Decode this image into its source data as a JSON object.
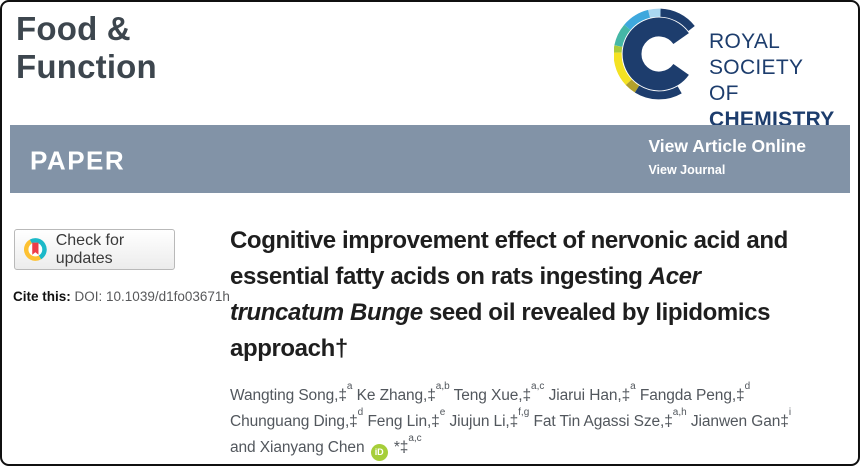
{
  "header": {
    "journal_name_lines": [
      "Food &",
      "Function"
    ],
    "publisher": {
      "line1": "ROYAL SOCIETY",
      "line2_regular": "OF ",
      "line2_bold": "CHEMISTRY"
    }
  },
  "banner": {
    "label": "PAPER",
    "view_article_online": "View Article Online",
    "view_journal": "View Journal"
  },
  "left_column": {
    "check_for_updates": "Check for updates",
    "cite_label": "Cite this:",
    "cite_value": "DOI: 10.1039/d1fo03671h"
  },
  "article": {
    "title_lines": [
      [
        {
          "text": "Cognitive improvement effect of nervonic acid and"
        }
      ],
      [
        {
          "text": "essential fatty acids on rats ingesting "
        },
        {
          "text": "Acer",
          "italic": true
        }
      ],
      [
        {
          "text": "truncatum Bunge",
          "italic": true
        },
        {
          "text": " seed oil revealed by lipidomics"
        }
      ],
      [
        {
          "text": "approach†"
        }
      ]
    ],
    "author_lines": [
      [
        {
          "text": "Wangting Song,‡"
        },
        {
          "sup": "a"
        },
        {
          "text": " Ke Zhang,‡"
        },
        {
          "sup": "a,b"
        },
        {
          "text": " Teng Xue,‡"
        },
        {
          "sup": "a,c"
        },
        {
          "text": " Jiarui Han,‡"
        },
        {
          "sup": "a"
        },
        {
          "text": " Fangda Peng,‡"
        },
        {
          "sup": "d"
        }
      ],
      [
        {
          "text": "Chunguang Ding,‡"
        },
        {
          "sup": "d"
        },
        {
          "text": " Feng Lin,‡"
        },
        {
          "sup": "e"
        },
        {
          "text": " Jiujun Li,‡"
        },
        {
          "sup": "f,g"
        },
        {
          "text": " Fat Tin Agassi Sze,‡"
        },
        {
          "sup": "a,h"
        },
        {
          "text": " Jianwen Gan‡"
        },
        {
          "sup": "i"
        }
      ],
      [
        {
          "text": "and Xianyang Chen "
        },
        {
          "icon": "orcid-id-icon"
        },
        {
          "text": " *‡"
        },
        {
          "sup": "a,c"
        }
      ]
    ]
  },
  "icons": {
    "orcid_label": "iD",
    "rsc_logo": "rsc-logo",
    "crossmark": "crossmark-icon"
  },
  "colors": {
    "banner_bg": "#8293a7",
    "journal_title": "#3d464e",
    "rsc_navy": "#1d3d6d",
    "rsc_sky_blue": "#3ea8dd",
    "rsc_pale_blue": "#a9d7f1",
    "rsc_teal": "#45b7a6",
    "rsc_lime": "#aaca3a",
    "rsc_yellow": "#f4e223",
    "rsc_olive": "#b2a02b",
    "orcid_green": "#a6ce39",
    "crossmark_teal": "#1cb9c8",
    "crossmark_yellow": "#fdc132",
    "crossmark_red": "#ee3d47",
    "title_text": "#1e1e1e",
    "author_text": "#52575d",
    "doi_text": "#58595b"
  }
}
